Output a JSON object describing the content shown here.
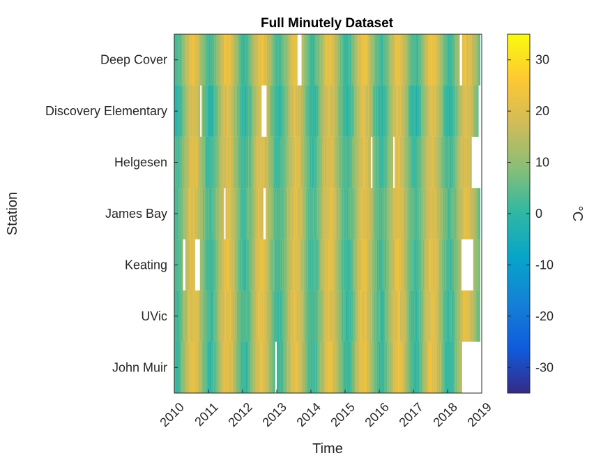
{
  "chart_data": {
    "type": "heatmap",
    "title": "Full Minutely Dataset",
    "xlabel": "Time",
    "ylabel": "Station",
    "x_ticks": [
      "2010",
      "2011",
      "2012",
      "2013",
      "2014",
      "2015",
      "2016",
      "2017",
      "2018",
      "2019"
    ],
    "xlim": [
      "2010",
      "2019"
    ],
    "stations": [
      "Deep Cover",
      "Discovery Elementary",
      "Helgesen",
      "James Bay",
      "Keating",
      "UVic",
      "John Muir"
    ],
    "colorbar": {
      "label": "°C",
      "clim": [
        -35,
        35
      ],
      "ticks": [
        "30",
        "20",
        "10",
        "0",
        "-10",
        "-20",
        "-30"
      ],
      "colormap": "parula"
    },
    "seasonal_range_c": [
      [
        2,
        22
      ],
      [
        0,
        20
      ],
      [
        2,
        20
      ],
      [
        3,
        20
      ],
      [
        2,
        21
      ],
      [
        2,
        21
      ],
      [
        1,
        22
      ]
    ],
    "data_end_year": [
      2018.95,
      2018.95,
      2018.7,
      2018.95,
      2018.95,
      2018.95,
      2018.42
    ],
    "missing_intervals": [
      [
        [
          2013.6,
          2013.72
        ],
        [
          2018.35,
          2018.42
        ]
      ],
      [
        [
          2010.75,
          2010.8
        ],
        [
          2012.55,
          2012.7
        ],
        [
          2018.9,
          2018.95
        ]
      ],
      [
        [
          2015.75,
          2015.8
        ],
        [
          2016.4,
          2016.45
        ],
        [
          2018.7,
          2018.95
        ]
      ],
      [
        [
          2011.45,
          2011.5
        ],
        [
          2012.6,
          2012.68
        ]
      ],
      [
        [
          2010.25,
          2010.32
        ],
        [
          2010.6,
          2010.75
        ],
        [
          2018.4,
          2018.75
        ]
      ],
      [],
      [
        [
          2012.95,
          2013.0
        ],
        [
          2018.42,
          2019.0
        ]
      ]
    ]
  }
}
